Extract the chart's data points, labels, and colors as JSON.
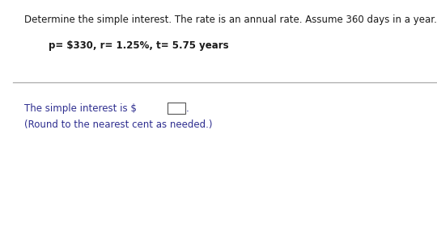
{
  "title_line": "Determine the simple interest. The rate is an annual rate. Assume 360 days in a year.",
  "params_line": "p= $330, r= 1.25%, t= 5.75 years",
  "answer_line1_before": "The simple interest is $",
  "answer_line1_after": ".",
  "answer_line2": "(Round to the nearest cent as needed.)",
  "text_color_dark": "#1a1a2e",
  "text_color_blue": "#2d2d8f",
  "title_color": "#1a1a1a",
  "bg_color": "#ffffff",
  "title_fontsize": 8.5,
  "body_fontsize": 8.5,
  "line_color": "#aaaaaa"
}
